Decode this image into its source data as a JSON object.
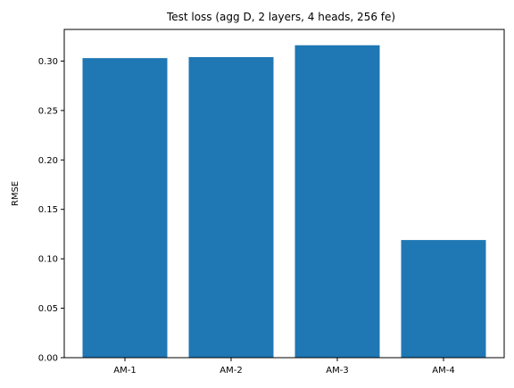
{
  "chart_data": {
    "type": "bar",
    "title": "Test loss (agg D, 2 layers, 4 heads, 256 fe)",
    "xlabel": "",
    "ylabel": "RMSE",
    "categories": [
      "AM-1",
      "AM-2",
      "AM-3",
      "AM-4"
    ],
    "values": [
      0.303,
      0.304,
      0.316,
      0.119
    ],
    "ylim": [
      0,
      0.332
    ],
    "yticks": [
      "0.00",
      "0.05",
      "0.10",
      "0.15",
      "0.20",
      "0.25",
      "0.30"
    ],
    "bar_color": "#1f77b4",
    "grid": false,
    "legend": null
  }
}
